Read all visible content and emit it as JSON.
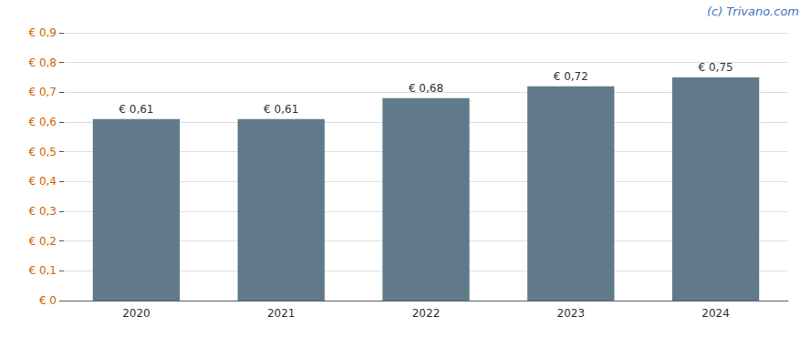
{
  "chart_data": {
    "type": "bar",
    "categories": [
      "2020",
      "2021",
      "2022",
      "2023",
      "2024"
    ],
    "values": [
      0.61,
      0.61,
      0.68,
      0.72,
      0.75
    ],
    "value_labels": [
      "€ 0,61",
      "€ 0,61",
      "€ 0,68",
      "€ 0,72",
      "€ 0,75"
    ],
    "data_labels": true,
    "color": "#607A8A",
    "ylim": [
      0,
      0.9
    ],
    "yticks": [
      {
        "value": 0,
        "label": "€ 0"
      },
      {
        "value": 0.1,
        "label": "€ 0,1"
      },
      {
        "value": 0.2,
        "label": "€ 0,2"
      },
      {
        "value": 0.3,
        "label": "€ 0,3"
      },
      {
        "value": 0.4,
        "label": "€ 0,4"
      },
      {
        "value": 0.5,
        "label": "€ 0,5"
      },
      {
        "value": 0.6,
        "label": "€ 0,6"
      },
      {
        "value": 0.7,
        "label": "€ 0,7"
      },
      {
        "value": 0.8,
        "label": "€ 0,8"
      },
      {
        "value": 0.9,
        "label": "€ 0,9"
      }
    ],
    "grid": true,
    "annotations": [
      "(c) Trivano.com"
    ]
  }
}
